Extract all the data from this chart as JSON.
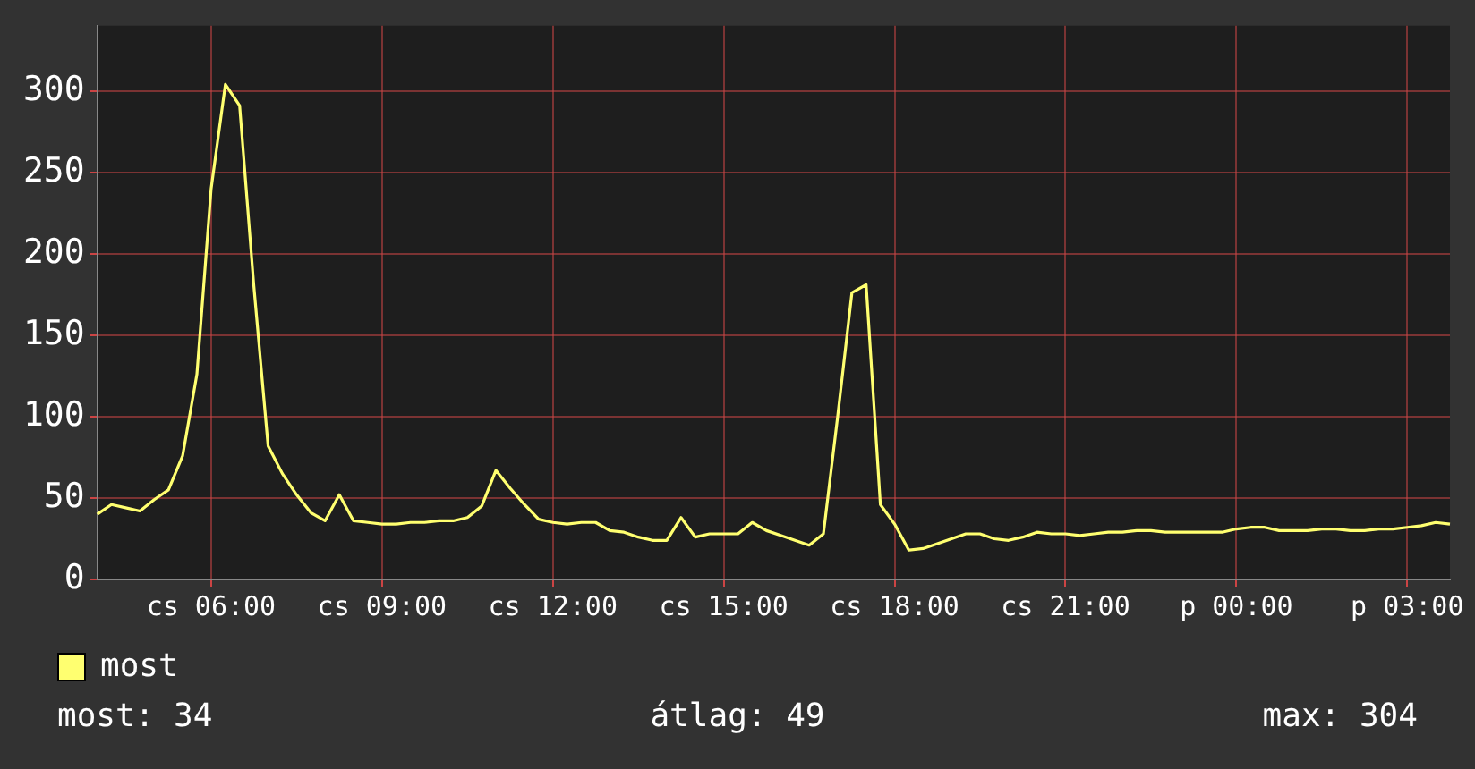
{
  "chart_data": {
    "type": "line",
    "categories": [
      null,
      null,
      null,
      null,
      null,
      null,
      null,
      null,
      "cs 06:00",
      null,
      null,
      null,
      null,
      null,
      null,
      null,
      null,
      null,
      null,
      null,
      "cs 09:00",
      null,
      null,
      null,
      null,
      null,
      null,
      null,
      null,
      null,
      null,
      null,
      "cs 12:00",
      null,
      null,
      null,
      null,
      null,
      null,
      null,
      null,
      null,
      null,
      null,
      "cs 15:00",
      null,
      null,
      null,
      null,
      null,
      null,
      null,
      null,
      null,
      null,
      null,
      "cs 18:00",
      null,
      null,
      null,
      null,
      null,
      null,
      null,
      null,
      null,
      null,
      null,
      "cs 21:00",
      null,
      null,
      null,
      null,
      null,
      null,
      null,
      null,
      null,
      null,
      null,
      "p 00:00",
      null,
      null,
      null,
      null,
      null,
      null,
      null,
      null,
      null,
      null,
      null,
      "p 03:00",
      null,
      null,
      null
    ],
    "series": [
      {
        "name": "most",
        "color": "#ffff70",
        "values": [
          40,
          46,
          44,
          42,
          49,
          55,
          76,
          126,
          240,
          304,
          291,
          180,
          82,
          65,
          52,
          41,
          36,
          52,
          36,
          35,
          34,
          34,
          35,
          35,
          36,
          36,
          38,
          45,
          67,
          56,
          46,
          37,
          35,
          34,
          35,
          35,
          30,
          29,
          26,
          24,
          24,
          38,
          26,
          28,
          28,
          28,
          35,
          30,
          27,
          24,
          21,
          28,
          100,
          176,
          181,
          46,
          34,
          18,
          19,
          22,
          25,
          28,
          28,
          25,
          24,
          26,
          29,
          28,
          28,
          27,
          28,
          29,
          29,
          30,
          30,
          29,
          29,
          29,
          29,
          29,
          31,
          32,
          32,
          30,
          30,
          30,
          31,
          31,
          30,
          30,
          31,
          31,
          32,
          33,
          35,
          34
        ]
      }
    ],
    "ylim": [
      0,
      340
    ],
    "yticks": [
      0,
      50,
      100,
      150,
      200,
      250,
      300
    ],
    "grid": true,
    "legend": "bottom left",
    "marker": "none",
    "annotations": [
      "most: 34",
      "átlag: 49",
      "max: 304"
    ]
  }
}
